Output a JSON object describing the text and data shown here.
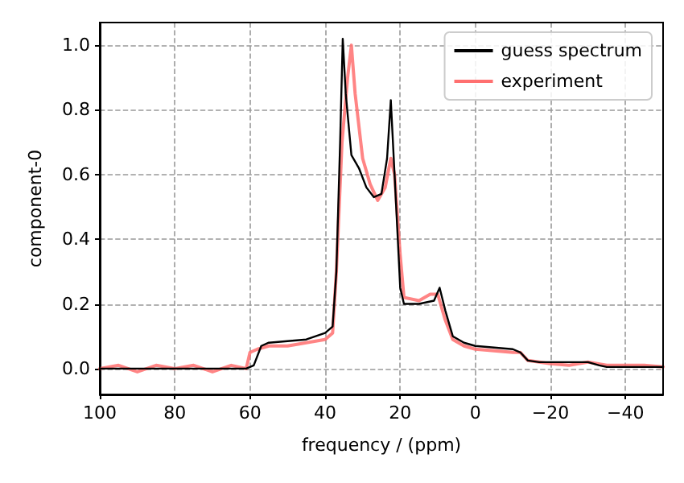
{
  "chart_data": {
    "type": "line",
    "xlabel": "frequency / (ppm)",
    "ylabel": "component-0",
    "xlim": [
      100,
      -50
    ],
    "ylim": [
      -0.08,
      1.07
    ],
    "xticks": [
      100,
      80,
      60,
      40,
      20,
      0,
      {
        "value": -20,
        "label": "−20"
      },
      {
        "value": -40,
        "label": "−40"
      }
    ],
    "yticks": [
      {
        "value": 0,
        "label": "0.0"
      },
      {
        "value": 0.2,
        "label": "0.2"
      },
      {
        "value": 0.4,
        "label": "0.4"
      },
      {
        "value": 0.6,
        "label": "0.6"
      },
      {
        "value": 0.8,
        "label": "0.8"
      },
      {
        "value": 1,
        "label": "1.0"
      }
    ],
    "grid": true,
    "legend": "top right",
    "series": [
      {
        "name": "guess spectrum",
        "color": "#000000",
        "x": [
          100,
          61,
          59,
          57,
          55,
          45,
          40,
          38,
          37,
          36,
          35.3,
          34.5,
          33,
          31,
          29,
          27,
          25,
          23.5,
          22.5,
          21.5,
          20,
          19,
          15,
          11,
          9.5,
          8,
          6,
          3,
          0,
          -5,
          -10,
          -12,
          -14,
          -17,
          -30,
          -33,
          -35,
          -50
        ],
        "values": [
          0,
          0,
          0.01,
          0.07,
          0.08,
          0.09,
          0.11,
          0.13,
          0.3,
          0.7,
          1.02,
          0.85,
          0.66,
          0.62,
          0.56,
          0.53,
          0.54,
          0.65,
          0.83,
          0.6,
          0.25,
          0.2,
          0.2,
          0.21,
          0.25,
          0.18,
          0.1,
          0.08,
          0.07,
          0.065,
          0.06,
          0.05,
          0.025,
          0.02,
          0.02,
          0.01,
          0.005,
          0.005
        ]
      },
      {
        "name": "experiment",
        "color": "#ff7070",
        "x": [
          100,
          95,
          90,
          85,
          80,
          75,
          70,
          65,
          61,
          60,
          58,
          55,
          50,
          45,
          40,
          38,
          37,
          35.5,
          34,
          33,
          32,
          30,
          28,
          26,
          24,
          22.5,
          21.5,
          20,
          19,
          15,
          12,
          10,
          8,
          6,
          3,
          0,
          -5,
          -10,
          -12,
          -14,
          -20,
          -25,
          -30,
          -35,
          -40,
          -45,
          -50
        ],
        "values": [
          0,
          0.01,
          -0.01,
          0.01,
          0,
          0.01,
          -0.01,
          0.01,
          0,
          0.05,
          0.06,
          0.07,
          0.07,
          0.08,
          0.09,
          0.11,
          0.3,
          0.7,
          0.9,
          1.0,
          0.85,
          0.65,
          0.57,
          0.52,
          0.56,
          0.65,
          0.6,
          0.35,
          0.22,
          0.21,
          0.23,
          0.23,
          0.15,
          0.09,
          0.07,
          0.06,
          0.055,
          0.05,
          0.05,
          0.025,
          0.015,
          0.01,
          0.02,
          0.01,
          0.01,
          0.01,
          0.005
        ]
      }
    ]
  }
}
